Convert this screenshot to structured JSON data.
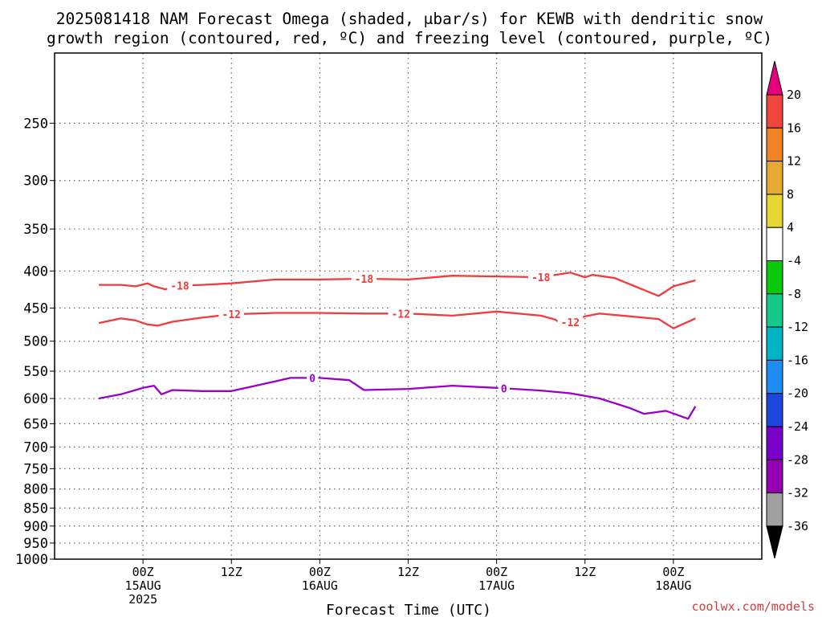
{
  "title": {
    "line1": "2025081418 NAM Forecast Omega (shaded, μbar/s) for KEWB with dendritic snow",
    "line2": "growth region (contoured, red, ºC) and freezing level (contoured, purple, ºC)"
  },
  "credit": "coolwx.com/models",
  "colors": {
    "dgz": "#f03c3c",
    "freezing": "#9a00c8",
    "grid": "#666666"
  },
  "chart_data": {
    "type": "line",
    "xlabel": "Forecast Time (UTC)",
    "ylabel": "",
    "x_range_hours": [
      -12,
      84
    ],
    "y_range_hPa": [
      1000,
      200
    ],
    "y_scale": "log-pressure",
    "grid": true,
    "y_ticks": [
      250,
      300,
      350,
      400,
      450,
      500,
      550,
      600,
      650,
      700,
      750,
      800,
      850,
      900,
      950,
      1000
    ],
    "x_ticks": [
      {
        "hour": 0,
        "lines": [
          "00Z",
          "15AUG",
          "2025"
        ]
      },
      {
        "hour": 12,
        "lines": [
          "12Z"
        ]
      },
      {
        "hour": 24,
        "lines": [
          "00Z",
          "16AUG"
        ]
      },
      {
        "hour": 36,
        "lines": [
          "12Z"
        ]
      },
      {
        "hour": 48,
        "lines": [
          "00Z",
          "17AUG"
        ]
      },
      {
        "hour": 60,
        "lines": [
          "12Z"
        ]
      },
      {
        "hour": 72,
        "lines": [
          "00Z",
          "18AUG"
        ]
      }
    ],
    "contours": [
      {
        "level": "-18",
        "color": "#f03c3c",
        "x": [
          -6,
          -3,
          -1,
          0.6,
          1.5,
          3,
          5,
          8,
          12,
          18,
          24,
          30,
          36,
          42,
          48,
          54,
          58,
          60,
          61,
          64,
          70,
          72,
          75
        ],
        "y": [
          418,
          418,
          420,
          416,
          420,
          424,
          419,
          418,
          416,
          411,
          411,
          410,
          411,
          406,
          407,
          408,
          402,
          408,
          405,
          409,
          433,
          420,
          412
        ],
        "labels": [
          {
            "text": "-18",
            "x": 5
          },
          {
            "text": "-18",
            "x": 30
          },
          {
            "text": "-18",
            "x": 54
          }
        ]
      },
      {
        "level": "-12",
        "color": "#f03c3c",
        "x": [
          -6,
          -3,
          -1,
          0.6,
          2,
          4,
          8,
          12,
          18,
          24,
          30,
          36,
          42,
          48,
          54,
          56,
          57,
          60,
          62,
          66,
          70,
          72,
          75
        ],
        "y": [
          472,
          465,
          468,
          474,
          476,
          470,
          464,
          459,
          457,
          457,
          458,
          458,
          461,
          455,
          461,
          467,
          475,
          462,
          458,
          462,
          466,
          480,
          465
        ],
        "labels": [
          {
            "text": "-12",
            "x": 12
          },
          {
            "text": "-12",
            "x": 35
          },
          {
            "text": "-12",
            "x": 58
          }
        ]
      },
      {
        "level": "0",
        "color": "#9a00c8",
        "x": [
          -6,
          -3,
          -1,
          0,
          1.5,
          2.5,
          4,
          8,
          12,
          18,
          20,
          24,
          28,
          30,
          36,
          42,
          48,
          54,
          58,
          62,
          66,
          68,
          71,
          74,
          75
        ],
        "y": [
          600,
          592,
          584,
          580,
          576,
          592,
          584,
          586,
          586,
          568,
          562,
          562,
          566,
          584,
          582,
          576,
          580,
          585,
          590,
          600,
          618,
          630,
          624,
          640,
          615
        ],
        "labels": [
          {
            "text": "0",
            "x": 23
          },
          {
            "text": "0",
            "x": 49
          }
        ]
      }
    ],
    "colorbar": {
      "colors": [
        "#e6007e",
        "#f0463c",
        "#f08228",
        "#e6aa32",
        "#e6d732",
        "#ffffff",
        "#0ac80a",
        "#16c88a",
        "#00b4c8",
        "#1e8cf0",
        "#1e46dc",
        "#7800c8",
        "#9600b4",
        "#a0a0a0",
        "#000000"
      ],
      "labels": [
        "20",
        "16",
        "12",
        "8",
        "4",
        "-4",
        "-8",
        "-12",
        "-16",
        "-20",
        "-24",
        "-28",
        "-32",
        "-36"
      ]
    }
  }
}
